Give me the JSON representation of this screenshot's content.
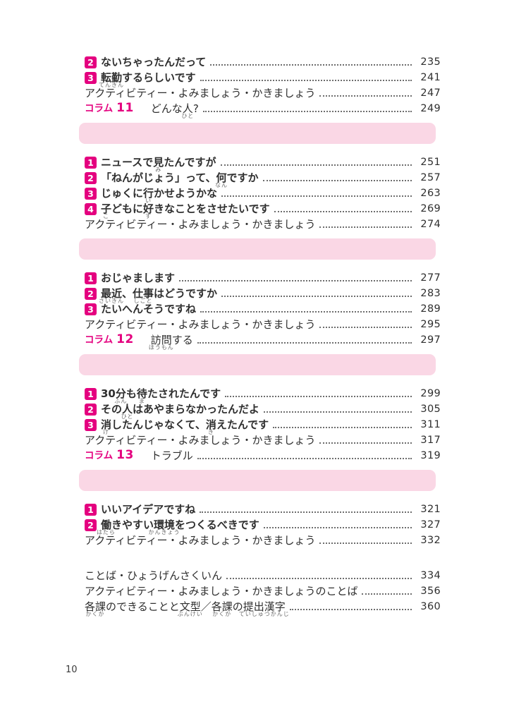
{
  "page_number": "10",
  "colors": {
    "accent": "#e4007f",
    "banner_pink": "#fad7e5",
    "text": "#2f2f2f",
    "furigana_gray": "#6b6b6b",
    "leader_dots": "#6e6e6e"
  },
  "sections": [
    {
      "banner": false,
      "rows": [
        {
          "kind": "lesson",
          "num": "2",
          "segments": [
            {
              "t": "ないちゃったんだって"
            }
          ],
          "page": "235"
        },
        {
          "kind": "lesson",
          "num": "3",
          "segments": [
            {
              "t": "転勤",
              "r": "てんきん"
            },
            {
              "t": "するらしいです"
            }
          ],
          "page": "241"
        },
        {
          "kind": "plain",
          "segments": [
            {
              "t": "アクティビティー・よみましょう・かきましょう"
            }
          ],
          "page": "247"
        },
        {
          "kind": "column",
          "label": "コラム",
          "label_num": "11",
          "segments": [
            {
              "t": "どんな"
            },
            {
              "t": "人",
              "r": "ひと"
            },
            {
              "t": "?"
            }
          ],
          "page": "249"
        }
      ]
    },
    {
      "banner": true,
      "rows": [
        {
          "kind": "lesson",
          "num": "1",
          "segments": [
            {
              "t": "ニュースで"
            },
            {
              "t": "見",
              "r": "み"
            },
            {
              "t": "たんですが"
            }
          ],
          "page": "251"
        },
        {
          "kind": "lesson",
          "num": "2",
          "segments": [
            {
              "t": "「ねんがじょう」って、"
            },
            {
              "t": "何",
              "r": "なん"
            },
            {
              "t": "ですか"
            }
          ],
          "page": "257"
        },
        {
          "kind": "lesson",
          "num": "3",
          "segments": [
            {
              "t": "じゅくに"
            },
            {
              "t": "行",
              "r": "い"
            },
            {
              "t": "かせようかな"
            }
          ],
          "page": "263"
        },
        {
          "kind": "lesson",
          "num": "4",
          "segments": [
            {
              "t": "子",
              "r": "こ"
            },
            {
              "t": "どもに"
            },
            {
              "t": "好",
              "r": "す"
            },
            {
              "t": "きなことをさせたいです"
            }
          ],
          "page": "269"
        },
        {
          "kind": "plain",
          "segments": [
            {
              "t": "アクティビティー・よみましょう・かきましょう"
            }
          ],
          "page": "274"
        }
      ]
    },
    {
      "banner": true,
      "rows": [
        {
          "kind": "lesson",
          "num": "1",
          "segments": [
            {
              "t": "おじゃまします"
            }
          ],
          "page": "277"
        },
        {
          "kind": "lesson",
          "num": "2",
          "segments": [
            {
              "t": "最近",
              "r": "さいきん"
            },
            {
              "t": "、"
            },
            {
              "t": "仕事",
              "r": "しごと"
            },
            {
              "t": "はどうですか"
            }
          ],
          "page": "283"
        },
        {
          "kind": "lesson",
          "num": "3",
          "segments": [
            {
              "t": "たいへんそうですね"
            }
          ],
          "page": "289"
        },
        {
          "kind": "plain",
          "segments": [
            {
              "t": "アクティビティー・よみましょう・かきましょう"
            }
          ],
          "page": "295"
        },
        {
          "kind": "column",
          "label": "コラム",
          "label_num": "12",
          "segments": [
            {
              "t": "訪問",
              "r": "ほうもん"
            },
            {
              "t": "する"
            }
          ],
          "page": "297"
        }
      ]
    },
    {
      "banner": true,
      "rows": [
        {
          "kind": "lesson",
          "num": "1",
          "segments": [
            {
              "t": "30"
            },
            {
              "t": "分",
              "r": "ふん"
            },
            {
              "t": "も"
            },
            {
              "t": "待",
              "r": "ま"
            },
            {
              "t": "たされたんです"
            }
          ],
          "page": "299"
        },
        {
          "kind": "lesson",
          "num": "2",
          "segments": [
            {
              "t": "その"
            },
            {
              "t": "人",
              "r": "ひと"
            },
            {
              "t": "はあやまらなかったんだよ"
            }
          ],
          "page": "305"
        },
        {
          "kind": "lesson",
          "num": "3",
          "segments": [
            {
              "t": "消",
              "r": "け"
            },
            {
              "t": "したんじゃなくて、"
            },
            {
              "t": "消",
              "r": "き"
            },
            {
              "t": "えたんです"
            }
          ],
          "page": "311"
        },
        {
          "kind": "plain",
          "segments": [
            {
              "t": "アクティビティー・よみましょう・かきましょう"
            }
          ],
          "page": "317"
        },
        {
          "kind": "column",
          "label": "コラム",
          "label_num": "13",
          "segments": [
            {
              "t": "トラブル"
            }
          ],
          "page": "319"
        }
      ]
    },
    {
      "banner": true,
      "rows": [
        {
          "kind": "lesson",
          "num": "1",
          "segments": [
            {
              "t": "いいアイデアですね"
            }
          ],
          "page": "321"
        },
        {
          "kind": "lesson",
          "num": "2",
          "segments": [
            {
              "t": "働",
              "r": "はたら"
            },
            {
              "t": "きやすい"
            },
            {
              "t": "環境",
              "r": "かんきょう"
            },
            {
              "t": "をつくるべきです"
            }
          ],
          "page": "327"
        },
        {
          "kind": "plain",
          "segments": [
            {
              "t": "アクティビティー・よみましょう・かきましょう"
            }
          ],
          "page": "332"
        }
      ]
    },
    {
      "banner": false,
      "gap_before": true,
      "rows": [
        {
          "kind": "plain",
          "segments": [
            {
              "t": "ことば・ひょうげんさくいん"
            }
          ],
          "page": "334"
        },
        {
          "kind": "plain",
          "segments": [
            {
              "t": "アクティビティー・よみましょう・かきましょうのことば"
            }
          ],
          "page": "356"
        },
        {
          "kind": "plain",
          "segments": [
            {
              "t": "各課",
              "r": "かくか"
            },
            {
              "t": "のできることと"
            },
            {
              "t": "文型",
              "r": "ぶんけい"
            },
            {
              "t": "／"
            },
            {
              "t": "各課",
              "r": "かくか"
            },
            {
              "t": "の"
            },
            {
              "t": "提出漢字",
              "r": "ていしゅつかんじ"
            }
          ],
          "page": "360"
        }
      ]
    }
  ]
}
